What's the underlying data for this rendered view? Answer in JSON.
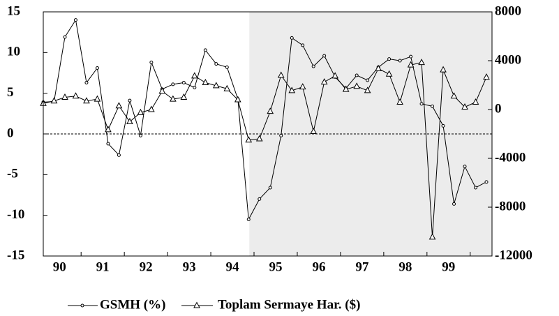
{
  "chart_data": {
    "type": "line",
    "categories": [
      "90",
      null,
      null,
      null,
      "91",
      null,
      null,
      null,
      "92",
      null,
      null,
      null,
      "93",
      null,
      null,
      null,
      "94",
      null,
      null,
      null,
      "95",
      null,
      null,
      null,
      "96",
      null,
      null,
      null,
      "97",
      null,
      null,
      null,
      "98",
      null,
      null,
      null,
      "99",
      null,
      null,
      null,
      null,
      null
    ],
    "series": [
      {
        "name": "GSMH (%)",
        "color": "#000000",
        "marker": "circle",
        "values": [
          3.9,
          4.0,
          11.9,
          14.0,
          6.3,
          8.1,
          -1.2,
          -2.6,
          4.1,
          -0.2,
          8.8,
          5.5,
          6.1,
          6.3,
          5.7,
          10.3,
          8.6,
          8.2,
          4.3,
          -10.5,
          -8.0,
          -6.6,
          -0.2,
          11.8,
          10.9,
          8.3,
          9.6,
          7.0,
          5.6,
          7.2,
          6.6,
          8.2,
          9.2,
          9.0,
          9.5,
          3.7,
          3.4,
          1.0,
          -8.6,
          -4.0,
          -6.6,
          -5.9
        ]
      },
      {
        "name": "Toplam Sermaye Har. ($)",
        "color": "#000000",
        "marker": "triangle",
        "axis": "y2",
        "values": [
          500,
          700,
          1000,
          1100,
          700,
          850,
          -1650,
          300,
          -1000,
          -250,
          0,
          1500,
          850,
          1000,
          2750,
          2200,
          1950,
          1700,
          800,
          -2500,
          -2400,
          -150,
          2800,
          1550,
          1850,
          -1800,
          2250,
          2750,
          1650,
          1900,
          1550,
          3350,
          2900,
          600,
          3650,
          3850,
          -10450,
          3250,
          1100,
          200,
          600,
          2650
        ]
      }
    ],
    "ylim": [
      -15,
      15
    ],
    "yticks": [
      -15,
      -10,
      -5,
      0,
      5,
      10,
      15
    ],
    "y2lim": [
      -12000,
      8000
    ],
    "y2ticks": [
      -12000,
      -8000,
      -4000,
      0,
      4000,
      8000
    ]
  }
}
